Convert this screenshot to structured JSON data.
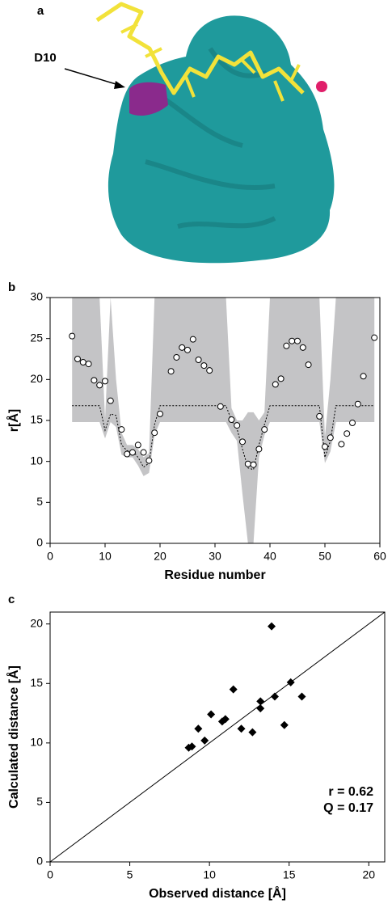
{
  "panel_labels": [
    "a",
    "b",
    "c"
  ],
  "figure_a": {
    "annotation": "D10"
  },
  "chart_data": [
    {
      "type": "band-scatter",
      "xlabel": "Residue number",
      "ylabel": "r[Å]",
      "xlim": [
        0,
        60
      ],
      "xticks": [
        0,
        10,
        20,
        30,
        40,
        50,
        60
      ],
      "ylim": [
        0,
        30
      ],
      "yticks": [
        0,
        5,
        10,
        15,
        20,
        25,
        30
      ],
      "band_color": "#c4c4c6",
      "band_x": [
        4,
        5,
        6,
        7,
        8,
        9,
        10,
        11,
        12,
        13,
        14,
        15,
        16,
        17,
        18,
        19,
        20,
        21,
        22,
        23,
        24,
        25,
        26,
        27,
        28,
        29,
        30,
        31,
        32,
        33,
        34,
        35,
        36,
        37,
        38,
        39,
        40,
        41,
        42,
        43,
        44,
        45,
        46,
        47,
        48,
        49,
        50,
        51,
        52,
        53,
        54,
        55,
        56,
        57,
        58,
        59
      ],
      "band_lower": [
        14.8,
        14.8,
        14.8,
        14.8,
        14.8,
        14.8,
        12.8,
        14.8,
        14.2,
        10.8,
        10.5,
        10.5,
        9.5,
        8.2,
        8.6,
        13.2,
        14.8,
        14.8,
        14.8,
        14.8,
        14.8,
        14.8,
        14.8,
        14.8,
        14.8,
        14.8,
        14.8,
        14.8,
        14.8,
        13.5,
        12.5,
        6,
        0,
        0,
        10.5,
        13.2,
        14.8,
        14.8,
        14.8,
        14.8,
        14.8,
        14.8,
        14.8,
        14.8,
        14.8,
        14.8,
        9.8,
        11.2,
        14.8,
        14.8,
        14.8,
        14.8,
        14.8,
        14.8,
        14.8,
        14.8
      ],
      "band_upper": [
        30,
        30,
        30,
        30,
        30,
        30,
        15.2,
        30,
        20,
        13.5,
        12,
        12,
        11.5,
        10.5,
        11,
        30,
        30,
        30,
        30,
        30,
        30,
        30,
        30,
        30,
        30,
        30,
        30,
        30,
        30,
        16.5,
        15,
        15,
        16,
        16,
        15,
        16,
        30,
        30,
        30,
        30,
        30,
        30,
        30,
        30,
        30,
        30,
        13,
        20,
        30,
        30,
        30,
        30,
        30,
        30,
        30,
        30
      ],
      "predicted": [
        16.8,
        16.8,
        16.8,
        16.8,
        16.8,
        16.8,
        13.8,
        15.8,
        15.6,
        12,
        11.3,
        11.3,
        10.5,
        9.3,
        9.8,
        14.5,
        16.8,
        16.8,
        16.8,
        16.8,
        16.8,
        16.8,
        16.8,
        16.8,
        16.8,
        16.8,
        16.8,
        16.8,
        16.8,
        15,
        14,
        11.5,
        9.2,
        9,
        12,
        14.5,
        16.8,
        16.8,
        16.8,
        16.8,
        16.8,
        16.8,
        16.8,
        16.8,
        16.8,
        16.8,
        10.5,
        12.5,
        16.8,
        16.8,
        16.8,
        16.8,
        16.8,
        16.8,
        16.8,
        16.8
      ],
      "x": [
        4,
        5,
        6,
        7,
        8,
        9,
        10,
        11,
        13,
        14,
        15,
        16,
        17,
        18,
        19,
        20,
        22,
        23,
        24,
        25,
        26,
        27,
        28,
        29,
        31,
        33,
        34,
        35,
        36,
        37,
        38,
        39,
        41,
        42,
        43,
        44,
        45,
        46,
        47,
        49,
        50,
        51,
        53,
        54,
        55,
        56,
        57,
        59
      ],
      "values": [
        25.3,
        22.5,
        22.1,
        21.9,
        19.9,
        19.3,
        19.8,
        17.4,
        13.9,
        10.9,
        11.1,
        12,
        11.1,
        10.1,
        13.5,
        15.8,
        21,
        22.7,
        23.9,
        23.6,
        24.9,
        22.4,
        21.7,
        21.1,
        16.7,
        15.1,
        14.4,
        12.4,
        9.7,
        9.6,
        11.5,
        13.9,
        19.4,
        20.1,
        24.1,
        24.7,
        24.7,
        23.9,
        21.8,
        15.5,
        11.8,
        12.9,
        12.1,
        13.4,
        14.7,
        17,
        20.4,
        25.1
      ]
    },
    {
      "type": "scatter",
      "xlabel": "Observed distance [Å]",
      "ylabel": "Calculated distance [Å]",
      "xlim": [
        0,
        21
      ],
      "xticks": [
        0,
        5,
        10,
        15,
        20
      ],
      "ylim": [
        0,
        21
      ],
      "yticks": [
        0,
        5,
        10,
        15,
        20
      ],
      "annotations": [
        "r = 0.62",
        "Q = 0.17"
      ],
      "x": [
        13.9,
        11.5,
        15.1,
        15.8,
        14.1,
        13.2,
        13.2,
        10.1,
        11.0,
        10.8,
        9.3,
        12.0,
        12.7,
        14.7,
        9.7,
        8.9,
        8.7
      ],
      "values": [
        19.8,
        14.5,
        15.1,
        13.9,
        13.9,
        13.5,
        12.9,
        12.4,
        12.0,
        11.8,
        11.2,
        11.2,
        10.9,
        11.5,
        10.2,
        9.7,
        9.6
      ]
    }
  ]
}
